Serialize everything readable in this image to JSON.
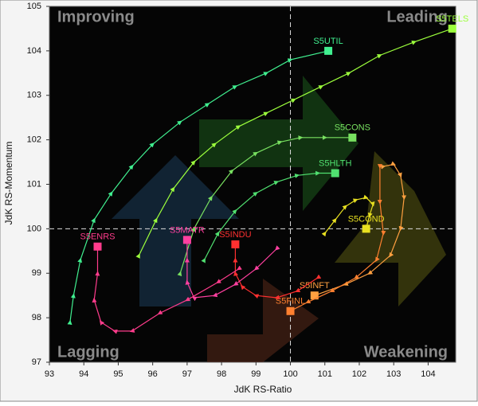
{
  "chart_data": {
    "type": "rrg",
    "xlabel": "JdK RS-Ratio",
    "ylabel": "JdK RS-Momentum",
    "quadrants": {
      "top_left": "Improving",
      "top_right": "Leading",
      "bottom_left": "Lagging",
      "bottom_right": "Weakening"
    },
    "xlim": [
      93,
      104.8
    ],
    "ylim": [
      97,
      105
    ],
    "xticks": [
      93,
      94,
      95,
      96,
      97,
      98,
      99,
      100,
      101,
      102,
      103,
      104
    ],
    "yticks": [
      97,
      98,
      99,
      100,
      101,
      102,
      103,
      104,
      105
    ],
    "center": [
      100,
      100
    ],
    "series": [
      {
        "name": "S5TELS",
        "color": "#9cff3c",
        "x": [
          95.6,
          96.1,
          96.6,
          97.2,
          97.8,
          98.5,
          99.3,
          100.1,
          100.9,
          101.7,
          102.6,
          103.6,
          104.7
        ],
        "values": [
          99.4,
          100.2,
          100.9,
          101.5,
          101.9,
          102.3,
          102.6,
          102.9,
          103.2,
          103.5,
          103.9,
          104.2,
          104.5
        ]
      },
      {
        "name": "S5UTIL",
        "color": "#40f090",
        "x": [
          93.6,
          93.7,
          93.9,
          94.3,
          94.8,
          95.4,
          96.0,
          96.8,
          97.6,
          98.4,
          99.3,
          100.0,
          101.1
        ],
        "values": [
          97.9,
          98.5,
          99.3,
          100.2,
          100.8,
          101.4,
          101.9,
          102.4,
          102.8,
          103.2,
          103.5,
          103.8,
          104.0
        ]
      },
      {
        "name": "S5CONS",
        "color": "#78e060",
        "x": [
          96.8,
          97.2,
          97.7,
          98.3,
          99.0,
          99.7,
          100.3,
          101.0,
          101.8
        ],
        "values": [
          99.0,
          100.0,
          100.7,
          101.3,
          101.7,
          101.95,
          102.05,
          102.05,
          102.05
        ]
      },
      {
        "name": "S5HLTH",
        "color": "#50e070",
        "x": [
          97.5,
          97.9,
          98.4,
          99.0,
          99.6,
          100.2,
          100.8,
          101.3
        ],
        "values": [
          99.3,
          99.9,
          100.4,
          100.8,
          101.05,
          101.2,
          101.25,
          101.25
        ]
      },
      {
        "name": "S5COND",
        "color": "#e8e020",
        "x": [
          101.0,
          101.3,
          101.6,
          101.9,
          102.2,
          102.4,
          102.3,
          102.2
        ],
        "values": [
          99.9,
          100.2,
          100.5,
          100.65,
          100.7,
          100.55,
          100.3,
          100.0
        ]
      },
      {
        "name": "S5INFT",
        "color": "#ffa040",
        "x": [
          102.7,
          103.0,
          103.2,
          103.3,
          103.2,
          102.9,
          102.3,
          101.6,
          100.7
        ],
        "values": [
          101.4,
          101.45,
          101.2,
          100.7,
          100.0,
          99.4,
          99.0,
          98.75,
          98.5
        ]
      },
      {
        "name": "S5FINL",
        "color": "#ff8030",
        "x": [
          102.6,
          102.6,
          102.7,
          102.5,
          101.9,
          101.2,
          100.5,
          100.0
        ],
        "values": [
          101.4,
          100.6,
          99.9,
          99.3,
          98.9,
          98.6,
          98.35,
          98.15
        ]
      },
      {
        "name": "S5INDU",
        "color": "#ff3030",
        "x": [
          100.8,
          100.2,
          99.6,
          99.0,
          98.6,
          98.4,
          98.4,
          98.4
        ],
        "values": [
          98.9,
          98.6,
          98.45,
          98.5,
          98.7,
          99.0,
          99.3,
          99.65
        ]
      },
      {
        "name": "S5MATR",
        "color": "#ff40a0",
        "x": [
          99.6,
          99.0,
          98.4,
          97.8,
          97.2,
          97.0,
          97.0,
          97.0
        ],
        "values": [
          99.55,
          99.1,
          98.75,
          98.5,
          98.45,
          98.8,
          99.3,
          99.75
        ]
      },
      {
        "name": "S5ENRS",
        "color": "#ff3c8c",
        "x": [
          98.5,
          97.9,
          97.0,
          96.2,
          95.4,
          94.9,
          94.5,
          94.3,
          94.4,
          94.4
        ],
        "values": [
          99.1,
          98.8,
          98.4,
          98.1,
          97.7,
          97.7,
          97.9,
          98.4,
          99.0,
          99.6
        ]
      }
    ]
  }
}
